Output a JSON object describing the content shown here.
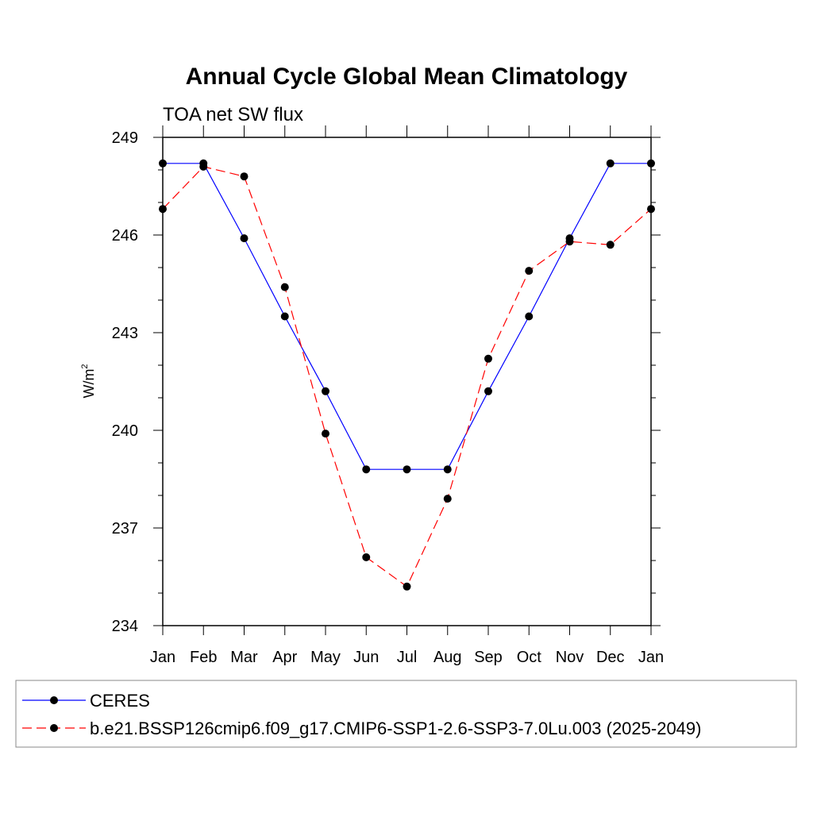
{
  "chart_data": {
    "type": "line",
    "title": "Annual Cycle Global Mean Climatology",
    "subtitle": "TOA net SW flux",
    "ylabel": "W/m",
    "ylabel_sup": "2",
    "categories": [
      "Jan",
      "Feb",
      "Mar",
      "Apr",
      "May",
      "Jun",
      "Jul",
      "Aug",
      "Sep",
      "Oct",
      "Nov",
      "Dec",
      "Jan"
    ],
    "yticks": [
      234,
      237,
      240,
      243,
      246,
      249
    ],
    "ylim": [
      234,
      249
    ],
    "series": [
      {
        "name": "CERES",
        "color": "#0000ff",
        "style": "solid",
        "values": [
          248.2,
          248.2,
          245.9,
          243.5,
          241.2,
          238.8,
          238.8,
          238.8,
          241.2,
          243.5,
          245.9,
          248.2,
          248.2
        ]
      },
      {
        "name": "b.e21.BSSP126cmip6.f09_g17.CMIP6-SSP1-2.6-SSP3-7.0Lu.003 (2025-2049)",
        "color": "#ff0000",
        "style": "dashed",
        "values": [
          246.8,
          248.1,
          247.8,
          244.4,
          239.9,
          236.1,
          235.2,
          237.9,
          242.2,
          244.9,
          245.8,
          245.7,
          246.8
        ]
      }
    ],
    "legend_position": "bottom"
  }
}
